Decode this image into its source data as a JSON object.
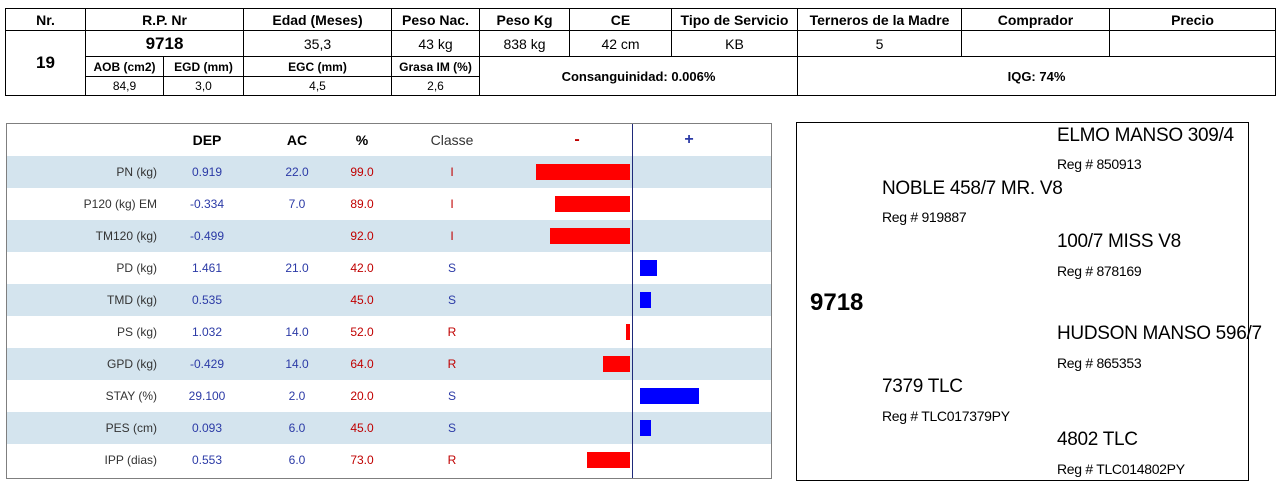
{
  "header": {
    "cols": [
      "Nr.",
      "R.P. Nr",
      "Edad (Meses)",
      "Peso Nac.",
      "Peso Kg",
      "CE",
      "Tipo de Servicio",
      "Terneros de la Madre",
      "Comprador",
      "Precio"
    ],
    "nr": "19",
    "rp": "9718",
    "edad": "35,3",
    "peso_nac": "43 kg",
    "peso_kg": "838 kg",
    "ce": "42 cm",
    "tipo_servicio": "KB",
    "terneros": "5",
    "comprador": "",
    "precio": "",
    "sub_labels": [
      "AOB (cm2)",
      "EGD (mm)",
      "EGC (mm)",
      "Grasa IM (%)"
    ],
    "sub_values": [
      "84,9",
      "3,0",
      "4,5",
      "2,6"
    ],
    "consanguinidad": "Consanguinidad: 0.006%",
    "iqg": "IQG: 74%"
  },
  "dep_table": {
    "headers": {
      "dep": "DEP",
      "ac": "AC",
      "pct": "%",
      "classe": "Classe",
      "minus": "-",
      "plus": "+"
    },
    "rows": [
      {
        "label": "PN (kg)",
        "dep": "0.919",
        "ac": "22.0",
        "pct": "99.0",
        "cls": "I",
        "bar": -94
      },
      {
        "label": "P120 (kg) EM",
        "dep": "-0.334",
        "ac": "7.0",
        "pct": "89.0",
        "cls": "I",
        "bar": -75
      },
      {
        "label": "TM120 (kg)",
        "dep": "-0.499",
        "ac": "",
        "pct": "92.0",
        "cls": "I",
        "bar": -80
      },
      {
        "label": "PD (kg)",
        "dep": "1.461",
        "ac": "21.0",
        "pct": "42.0",
        "cls": "S",
        "bar": 17
      },
      {
        "label": "TMD (kg)",
        "dep": "0.535",
        "ac": "",
        "pct": "45.0",
        "cls": "S",
        "bar": 11
      },
      {
        "label": "PS (kg)",
        "dep": "1.032",
        "ac": "14.0",
        "pct": "52.0",
        "cls": "R",
        "bar": -4
      },
      {
        "label": "GPD (kg)",
        "dep": "-0.429",
        "ac": "14.0",
        "pct": "64.0",
        "cls": "R",
        "bar": -27
      },
      {
        "label": "STAY (%)",
        "dep": "29.100",
        "ac": "2.0",
        "pct": "20.0",
        "cls": "S",
        "bar": 59
      },
      {
        "label": "PES (cm)",
        "dep": "0.093",
        "ac": "6.0",
        "pct": "45.0",
        "cls": "S",
        "bar": 11
      },
      {
        "label": "IPP (dias)",
        "dep": "0.553",
        "ac": "6.0",
        "pct": "73.0",
        "cls": "R",
        "bar": -43
      }
    ],
    "colors": {
      "neg": "#ff0000",
      "pos": "#0000ff",
      "shade": "#d4e4ee"
    }
  },
  "pedigree": {
    "animal": "9718",
    "sire": {
      "name": "NOBLE 458/7  MR. V8",
      "reg": "Reg # 919887"
    },
    "sire_sire": {
      "name": "ELMO MANSO 309/4",
      "reg": "Reg # 850913"
    },
    "sire_dam": {
      "name": "100/7 MISS V8",
      "reg": "Reg # 878169"
    },
    "dam": {
      "name": "7379 TLC",
      "reg": "Reg # TLC017379PY"
    },
    "dam_sire": {
      "name": "HUDSON MANSO 596/7",
      "reg": "Reg # 865353"
    },
    "dam_dam": {
      "name": "4802 TLC",
      "reg": "Reg # TLC014802PY"
    }
  }
}
